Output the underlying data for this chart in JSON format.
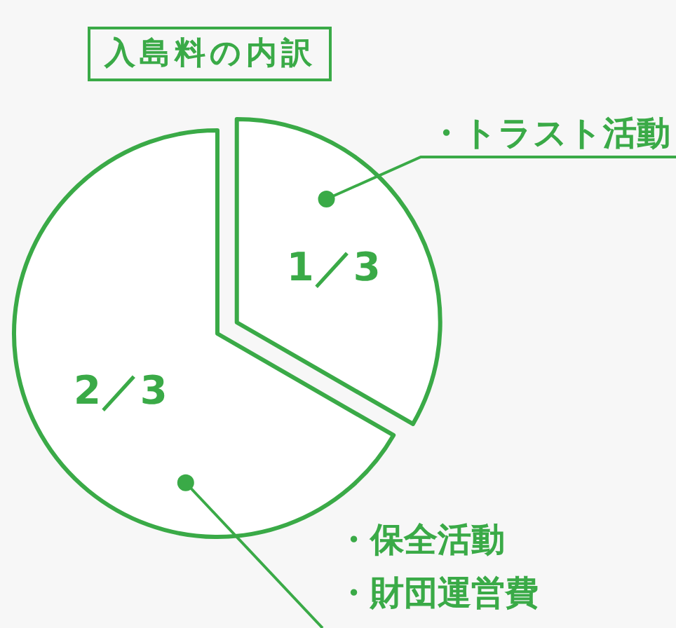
{
  "chart_data": {
    "type": "pie",
    "title": "入島料の内訳",
    "categories": [
      "・トラスト活動",
      "・保全活動"
    ],
    "values": [
      33.33,
      66.67
    ],
    "colors": [
      "#ffffff",
      "#ffffff"
    ],
    "annotations": [
      "1／3",
      "2／3",
      "・財団運営費"
    ]
  }
}
